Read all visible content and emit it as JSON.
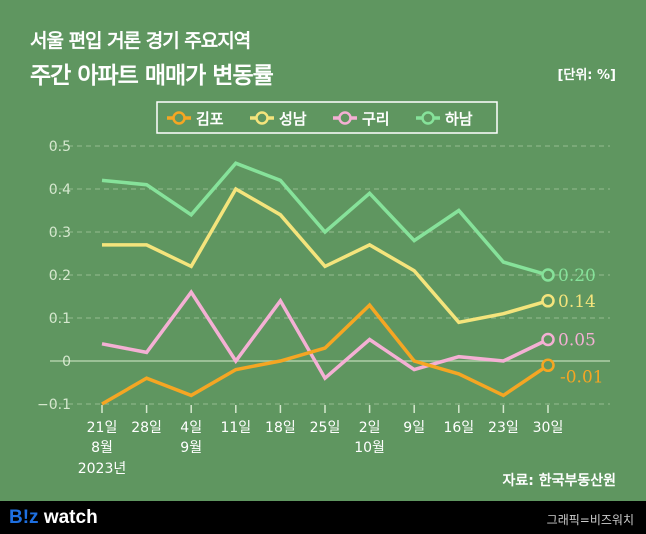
{
  "title_line1": "서울 편입 거론 경기 주요지역",
  "title_line2": "주간 아파트 매매가 변동률",
  "unit": "[단위: %]",
  "source": "자료: 한국부동산원",
  "footer": {
    "logo_b": "B!z",
    "logo_rest": " watch",
    "credit": "그래픽=비즈워치"
  },
  "chart_data": {
    "type": "line",
    "title": "주간 아파트 매매가 변동률",
    "categories": [
      "21일",
      "28일",
      "4일",
      "11일",
      "18일",
      "25일",
      "2일",
      "9일",
      "16일",
      "23일",
      "30일"
    ],
    "category_sublabels": [
      "8월\n2023년",
      "",
      "9월",
      "",
      "",
      "",
      "10월",
      "",
      "",
      "",
      ""
    ],
    "ylim": [
      -0.1,
      0.5
    ],
    "yticks": [
      "0.5",
      "0.4",
      "0.3",
      "0.2",
      "0.1",
      "0",
      "−0.1"
    ],
    "ytick_values": [
      0.5,
      0.4,
      0.3,
      0.2,
      0.1,
      0,
      -0.1
    ],
    "legend_position": "top",
    "series": [
      {
        "name": "김포",
        "color": "#f5a623",
        "values": [
          -0.1,
          -0.04,
          -0.08,
          -0.02,
          0.0,
          0.03,
          0.13,
          0.0,
          -0.03,
          -0.08,
          -0.01
        ],
        "end_label": "-0.01"
      },
      {
        "name": "성남",
        "color": "#f4e47c",
        "values": [
          0.27,
          0.27,
          0.22,
          0.4,
          0.34,
          0.22,
          0.27,
          0.21,
          0.09,
          0.11,
          0.14
        ],
        "end_label": "0.14"
      },
      {
        "name": "구리",
        "color": "#f4b0d4",
        "values": [
          0.04,
          0.02,
          0.16,
          0.0,
          0.14,
          -0.04,
          0.05,
          -0.02,
          0.01,
          0.0,
          0.05
        ],
        "end_label": "0.05"
      },
      {
        "name": "하남",
        "color": "#86e29a",
        "values": [
          0.42,
          0.41,
          0.34,
          0.46,
          0.42,
          0.3,
          0.39,
          0.28,
          0.35,
          0.23,
          0.2
        ],
        "end_label": "0.20"
      }
    ]
  }
}
